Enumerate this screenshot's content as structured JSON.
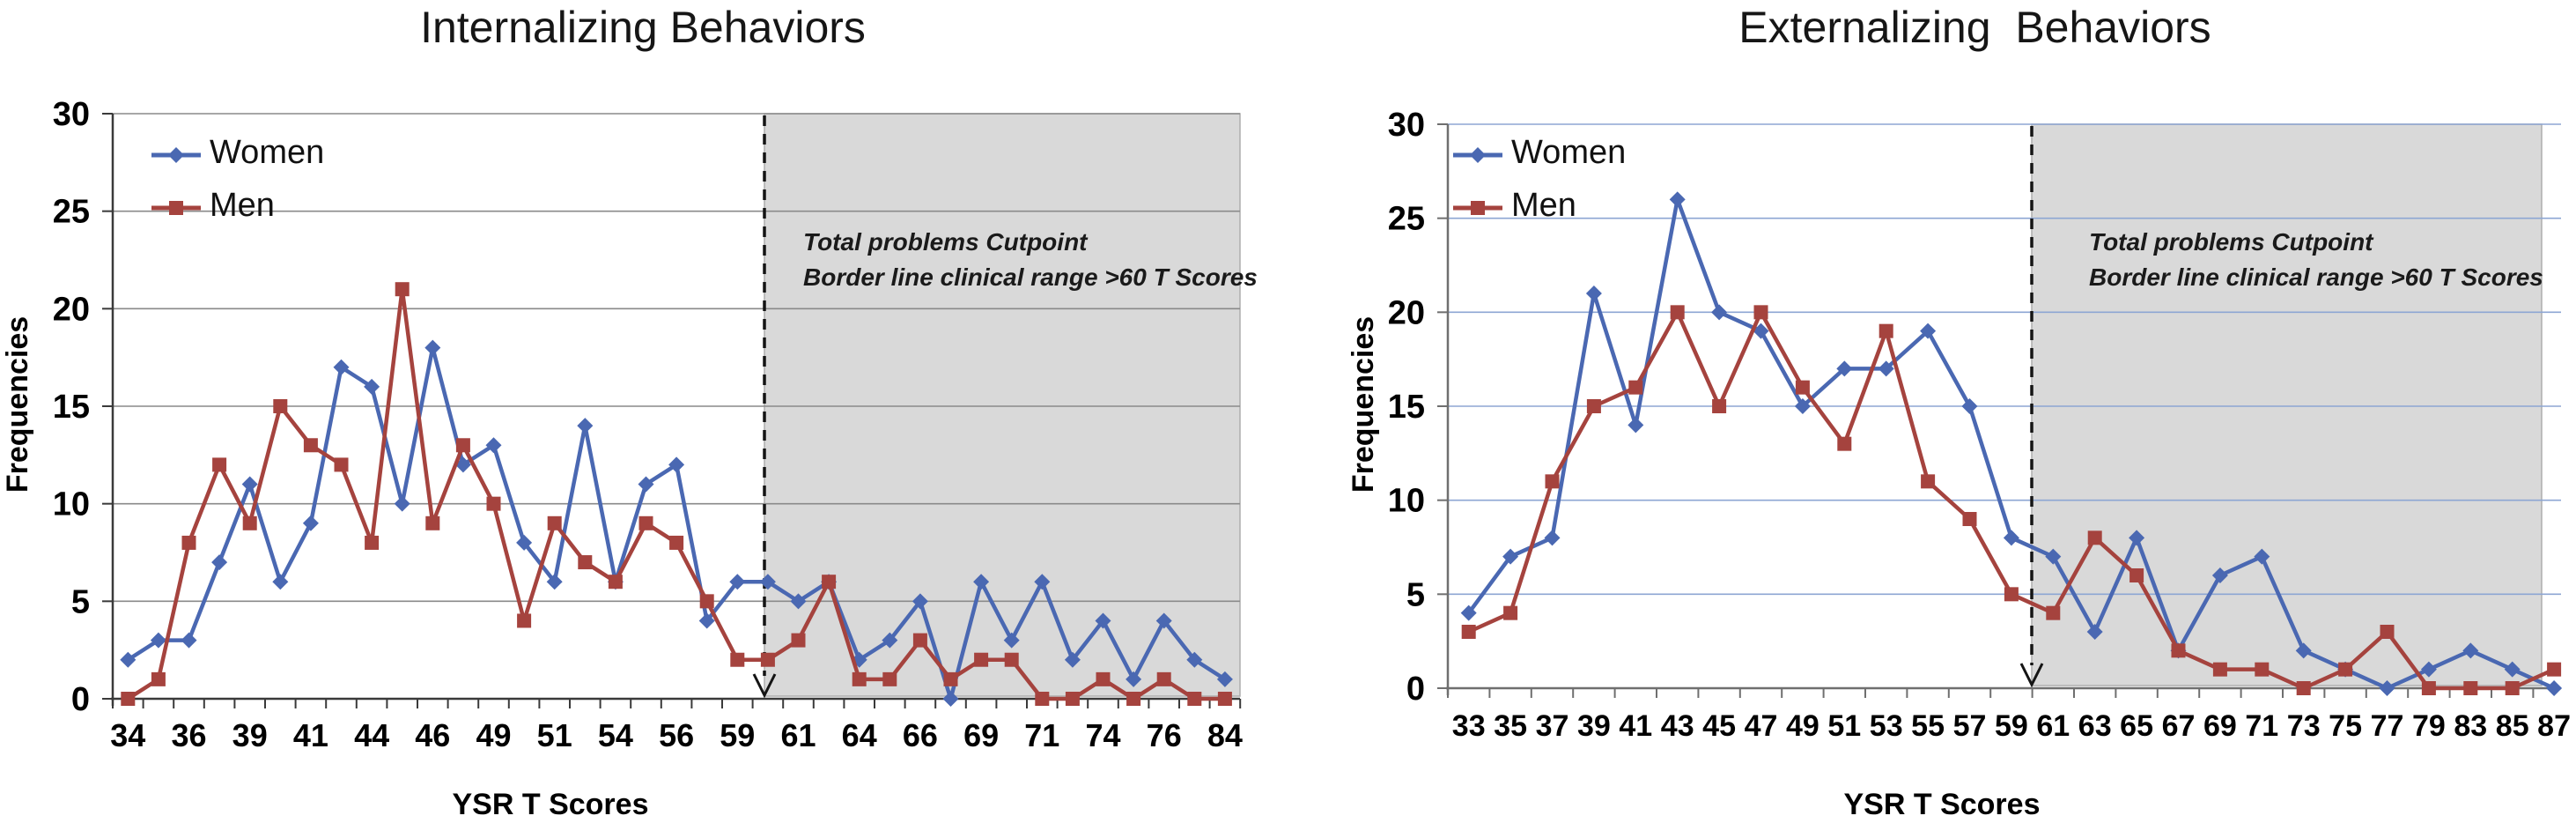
{
  "chart_data": [
    {
      "type": "line",
      "id": "internalizing",
      "title": "Internalizing Behaviors",
      "xlabel": "YSR T Scores",
      "ylabel": "Frequencies",
      "ylim": [
        0,
        30
      ],
      "yticks": [
        0,
        5,
        10,
        15,
        20,
        25,
        30
      ],
      "grid": true,
      "legend_position": "top-left",
      "categories": [
        "34",
        "",
        "36",
        "",
        "39",
        "",
        "41",
        "",
        "44",
        "",
        "46",
        "",
        "49",
        "",
        "51",
        "",
        "54",
        "",
        "56",
        "",
        "59",
        "",
        "61",
        "",
        "64",
        "",
        "66",
        "",
        "69",
        "",
        "71",
        "",
        "74",
        "",
        "76",
        "",
        "84"
      ],
      "series": [
        {
          "name": "Women",
          "marker": "diamond",
          "color": "#4A68B2",
          "values": [
            2,
            3,
            3,
            7,
            11,
            6,
            9,
            17,
            16,
            10,
            18,
            12,
            13,
            8,
            6,
            14,
            6,
            11,
            12,
            4,
            6,
            6,
            5,
            6,
            2,
            3,
            5,
            0,
            6,
            3,
            6,
            2,
            4,
            1,
            4,
            2,
            1
          ]
        },
        {
          "name": "Men",
          "marker": "square",
          "color": "#A5433E",
          "values": [
            0,
            1,
            8,
            12,
            9,
            15,
            13,
            12,
            8,
            21,
            9,
            13,
            10,
            4,
            9,
            7,
            6,
            9,
            8,
            5,
            2,
            2,
            3,
            6,
            1,
            1,
            3,
            1,
            2,
            2,
            0,
            0,
            1,
            0,
            1,
            0,
            0
          ]
        }
      ],
      "cutpoint": {
        "after_category_index": 21,
        "annotation_line1": "Total problems Cutpoint",
        "annotation_line2": "Border line clinical range >60 T Scores"
      },
      "colors": {
        "gridline": "#8A8A8A",
        "axis": "#3A3A3A",
        "shade": "#D9D9D9",
        "shade_border": "#ADADAD",
        "cutpoint_line": "#141414",
        "tick_label": "#000000"
      }
    },
    {
      "type": "line",
      "id": "externalizing",
      "title": "Externalizing  Behaviors",
      "xlabel": "YSR T Scores",
      "ylabel": "Frequencies",
      "ylim": [
        0,
        30
      ],
      "yticks": [
        0,
        5,
        10,
        15,
        20,
        25,
        30
      ],
      "grid": true,
      "legend_position": "top-left",
      "categories": [
        "33",
        "35",
        "37",
        "39",
        "41",
        "43",
        "45",
        "47",
        "49",
        "51",
        "53",
        "55",
        "57",
        "59",
        "61",
        "63",
        "65",
        "67",
        "69",
        "71",
        "73",
        "75",
        "77",
        "79",
        "83",
        "85",
        "87"
      ],
      "series": [
        {
          "name": "Women",
          "marker": "diamond",
          "color": "#4A68B2",
          "values": [
            4,
            7,
            8,
            21,
            14,
            26,
            20,
            19,
            15,
            17,
            17,
            19,
            15,
            8,
            7,
            3,
            8,
            2,
            6,
            7,
            2,
            1,
            0,
            1,
            2,
            1,
            0
          ]
        },
        {
          "name": "Men",
          "marker": "square",
          "color": "#A5433E",
          "values": [
            3,
            4,
            11,
            15,
            16,
            20,
            15,
            20,
            16,
            13,
            19,
            11,
            9,
            5,
            4,
            8,
            6,
            2,
            1,
            1,
            0,
            1,
            3,
            0,
            0,
            0,
            1
          ]
        }
      ],
      "cutpoint": {
        "after_category_index": 13,
        "annotation_line1": "Total problems Cutpoint",
        "annotation_line2": "Border line clinical range >60 T Scores"
      },
      "colors": {
        "gridline": "#8DA6D3",
        "axis": "#6F6F6F",
        "shade": "#D9D9D9",
        "shade_border": "#ADADAD",
        "cutpoint_line": "#141414",
        "tick_label": "#000000"
      }
    }
  ]
}
